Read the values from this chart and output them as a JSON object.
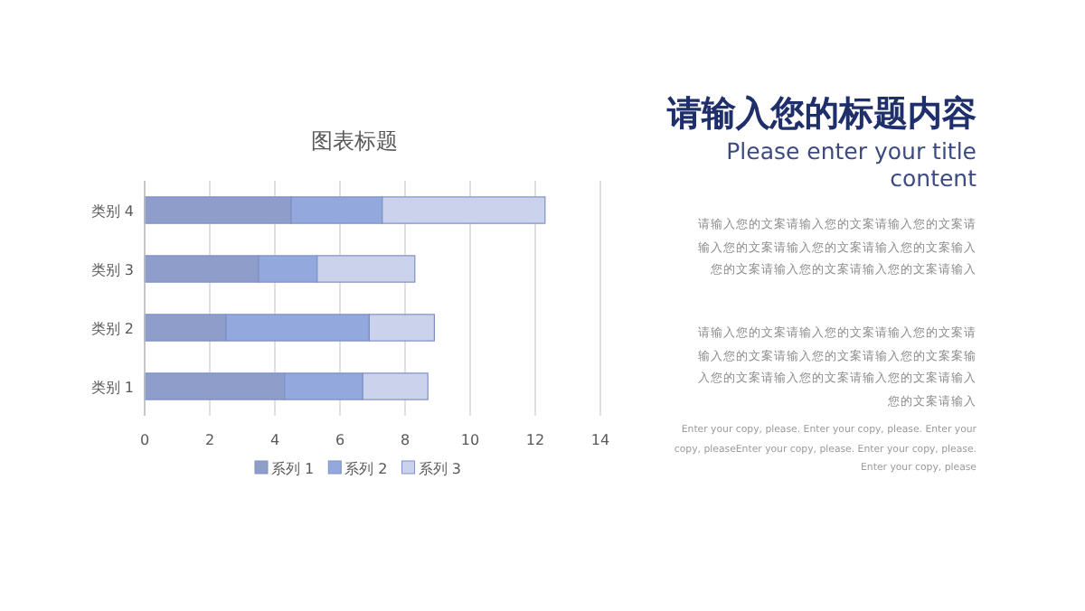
{
  "chart_data": {
    "type": "bar",
    "orientation": "horizontal",
    "stacked": true,
    "title": "图表标题",
    "categories": [
      "类别 4",
      "类别 3",
      "类别 2",
      "类别 1"
    ],
    "series": [
      {
        "name": "系列 1",
        "color": "#8f9dcb",
        "values": [
          4.5,
          3.5,
          2.5,
          4.3
        ]
      },
      {
        "name": "系列 2",
        "color": "#93a8dc",
        "values": [
          2.8,
          1.8,
          4.4,
          2.4
        ]
      },
      {
        "name": "系列 3",
        "color": "#cbd3ec",
        "values": [
          5,
          3,
          2,
          2
        ]
      }
    ],
    "xlim": [
      0,
      14
    ],
    "xticks": [
      0,
      2,
      4,
      6,
      8,
      10,
      12,
      14
    ],
    "grid": "x",
    "legend": "bottom",
    "annotations": [
      "请输入您的标题内容",
      "Please enter your title content",
      "请输入您的文案请输入您的文案请输入您的文案请输入您的文案请输入您的文案请输入您的文案输入您的文案请输入您的文案请输入您的文案请输入",
      "请输入您的文案请输入您的文案请输入您的文案请输入您的文案请输入您的文案请输入您的文案案输入您的文案请输入您的文案请输入您的文案请输入您的文案请输入",
      "Enter your copy, please. Enter your copy, please. Enter your copy, pleaseEnter your copy, please. Enter your copy, please. Enter your copy, please"
    ]
  }
}
